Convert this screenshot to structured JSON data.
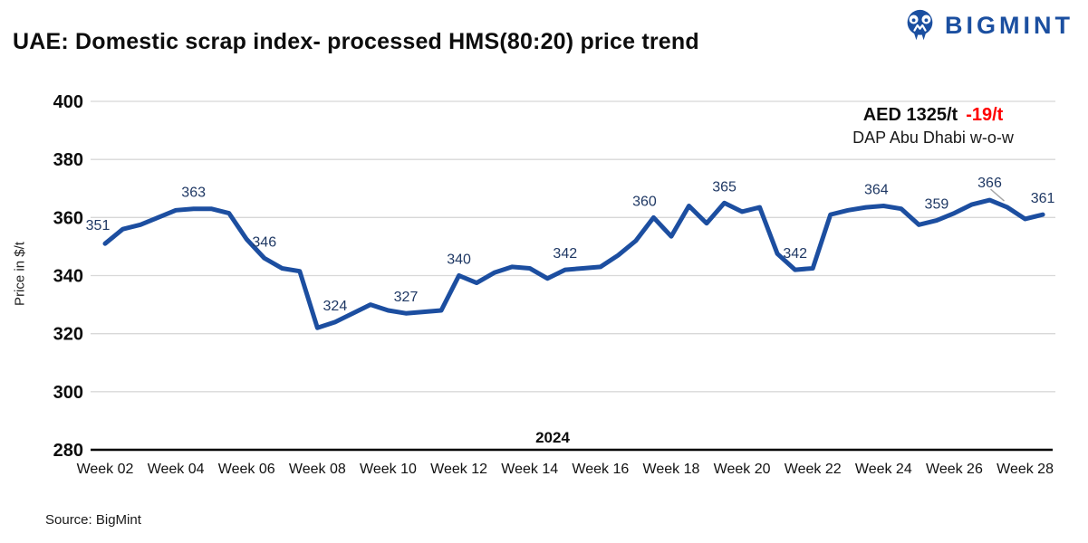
{
  "title": "UAE: Domestic scrap index- processed HMS(80:20) price trend",
  "brand": {
    "name": "BIGMINT",
    "color": "#1b4fa0"
  },
  "annotation": {
    "main": "AED 1325/t",
    "delta": "-19/t",
    "delta_color": "#ff0000",
    "sub": "DAP Abu Dhabi w-o-w"
  },
  "source": "Source: BigMint",
  "chart_data": {
    "type": "line",
    "title": "UAE: Domestic scrap index- processed HMS(80:20) price trend",
    "xlabel": "2024",
    "ylabel": "Price in $/t",
    "ylim": [
      280,
      400
    ],
    "yticks": [
      280,
      300,
      320,
      340,
      360,
      380,
      400
    ],
    "grid": true,
    "legend": "none",
    "x_tick_labels": [
      "Week 02",
      "Week 04",
      "Week 06",
      "Week 08",
      "Week 10",
      "Week 12",
      "Week 14",
      "Week 16",
      "Week 18",
      "Week 20",
      "Week 22",
      "Week 24",
      "Week 26",
      "Week 28"
    ],
    "points_per_tick": 4,
    "series": [
      {
        "name": "Domestic scrap index processed HMS(80:20), $/t",
        "color": "#1c4ea0",
        "label_color": "#1f3864",
        "values": [
          351,
          356,
          357.5,
          360,
          362.5,
          363,
          363,
          361.5,
          352.5,
          346,
          342.5,
          341.5,
          322,
          324,
          327,
          330,
          328,
          327,
          327.5,
          328,
          340,
          337.5,
          341,
          343,
          342.5,
          339,
          342,
          342.5,
          343,
          347,
          352,
          360,
          353.5,
          364,
          358,
          365,
          362,
          363.5,
          347.5,
          342,
          342.5,
          361,
          362.5,
          363.5,
          364,
          363,
          357.5,
          359,
          361.5,
          364.5,
          366,
          363.5,
          359.5,
          361
        ]
      }
    ],
    "point_labels": [
      {
        "i": 0,
        "t": "351",
        "dx": -8,
        "dy": -15
      },
      {
        "i": 5,
        "t": "363"
      },
      {
        "i": 9,
        "t": "346"
      },
      {
        "i": 13,
        "t": "324"
      },
      {
        "i": 17,
        "t": "327"
      },
      {
        "i": 20,
        "t": "340"
      },
      {
        "i": 26,
        "t": "342"
      },
      {
        "i": 31,
        "t": "360",
        "dx": -10
      },
      {
        "i": 35,
        "t": "365"
      },
      {
        "i": 39,
        "t": "342"
      },
      {
        "i": 44,
        "t": "364",
        "dx": -8
      },
      {
        "i": 47,
        "t": "359"
      },
      {
        "i": 50,
        "t": "366",
        "dy": -14,
        "leader": [
          1,
          -12,
          16,
          1
        ]
      },
      {
        "i": 53,
        "t": "361"
      }
    ]
  }
}
